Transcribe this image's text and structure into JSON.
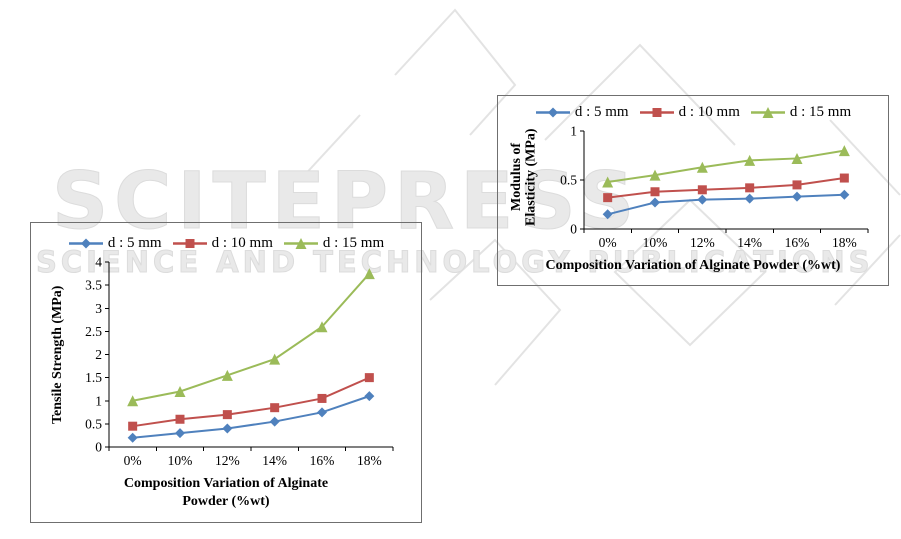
{
  "watermark": {
    "line1": "SCITEPRESS",
    "line2": "SCIENCE AND TECHNOLOGY PUBLICATIONS"
  },
  "colors": {
    "series_blue": "#4F81BD",
    "series_red": "#C0504D",
    "series_green": "#9BBB59",
    "axis": "#000000"
  },
  "chart_data": [
    {
      "id": "tensile-strength",
      "type": "line",
      "categories": [
        "0%",
        "10%",
        "12%",
        "14%",
        "16%",
        "18%"
      ],
      "series": [
        {
          "name": "d : 5 mm",
          "marker": "diamond",
          "color": "#4F81BD",
          "values": [
            0.2,
            0.3,
            0.4,
            0.55,
            0.75,
            1.1
          ]
        },
        {
          "name": "d : 10 mm",
          "marker": "square",
          "color": "#C0504D",
          "values": [
            0.45,
            0.6,
            0.7,
            0.85,
            1.05,
            1.5
          ]
        },
        {
          "name": "d : 15 mm",
          "marker": "triangle",
          "color": "#9BBB59",
          "values": [
            1.0,
            1.2,
            1.55,
            1.9,
            2.6,
            3.75
          ]
        }
      ],
      "ylabel": "Tensile Strength (MPa)",
      "xlabel": "Composition Variation of Alginate Powder (%wt)",
      "ylim": [
        0,
        4
      ],
      "ytick_step": 0.5,
      "legend_position": "top",
      "grid": false
    },
    {
      "id": "modulus-of-elasticity",
      "type": "line",
      "categories": [
        "0%",
        "10%",
        "12%",
        "14%",
        "16%",
        "18%"
      ],
      "series": [
        {
          "name": "d : 5 mm",
          "marker": "diamond",
          "color": "#4F81BD",
          "values": [
            0.15,
            0.27,
            0.3,
            0.31,
            0.33,
            0.35
          ]
        },
        {
          "name": "d : 10 mm",
          "marker": "square",
          "color": "#C0504D",
          "values": [
            0.32,
            0.38,
            0.4,
            0.42,
            0.45,
            0.52
          ]
        },
        {
          "name": "d : 15 mm",
          "marker": "triangle",
          "color": "#9BBB59",
          "values": [
            0.48,
            0.55,
            0.63,
            0.7,
            0.72,
            0.8
          ]
        }
      ],
      "ylabel": "Modulus of Elasticity (MPa)",
      "xlabel": "Composition Variation of Alginate Powder (%wt)",
      "ylim": [
        0,
        1
      ],
      "ytick_step": 0.5,
      "legend_position": "top",
      "grid": false
    }
  ]
}
